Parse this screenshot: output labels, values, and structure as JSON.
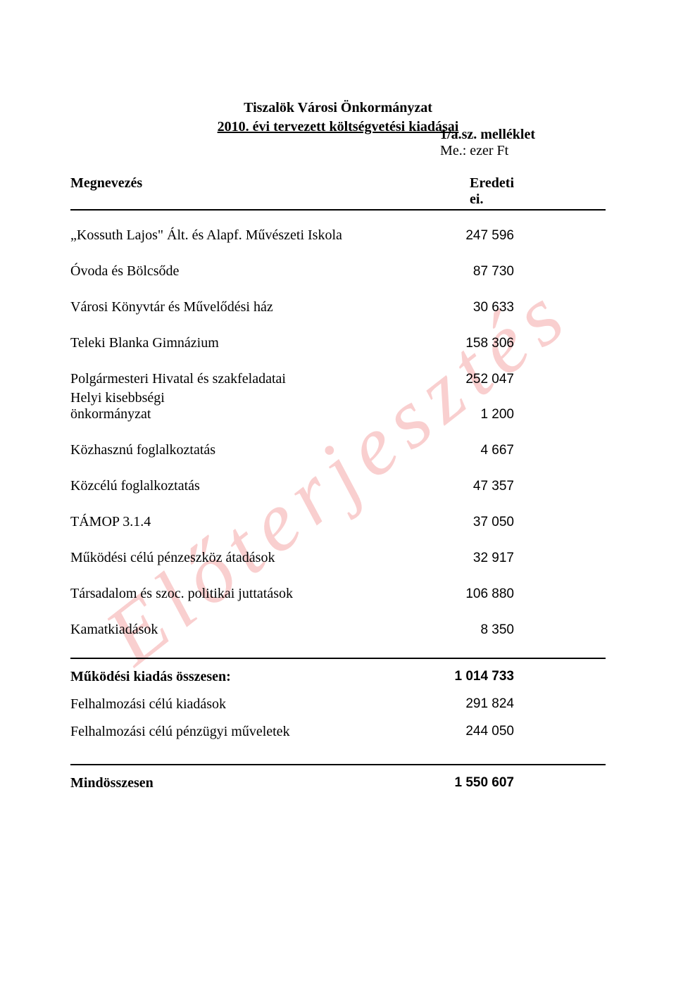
{
  "header": {
    "appendix": "1/a.sz. melléklet",
    "unit": "Me.: ezer Ft"
  },
  "title": {
    "line1": "Tiszalök Városi Önkormányzat",
    "line2": "2010. évi tervezett költségvetési kiadásai"
  },
  "columns": {
    "label": "Megnevezés",
    "value_line1": "Eredeti",
    "value_line2": "ei."
  },
  "rows": [
    {
      "label": "„Kossuth Lajos\" Ált. és Alapf. Művészeti Iskola",
      "value": "247 596"
    },
    {
      "label": "Óvoda és Bölcsőde",
      "value": "87 730"
    },
    {
      "label": "Városi Könyvtár és Művelődési ház",
      "value": "30 633"
    },
    {
      "label": "Teleki Blanka Gimnázium",
      "value": "158 306"
    },
    {
      "label": "Polgármesteri Hivatal és szakfeladatai",
      "value": "252 047"
    },
    {
      "label": "Helyi kisebbségi",
      "value": ""
    },
    {
      "label": "önkormányzat",
      "value": "1 200"
    },
    {
      "label": "Közhasznú foglalkoztatás",
      "value": "4 667"
    },
    {
      "label": "Közcélú foglalkoztatás",
      "value": "47 357"
    },
    {
      "label": "TÁMOP 3.1.4",
      "value": "37 050"
    },
    {
      "label": "Működési célú pénzeszköz átadások",
      "value": "32 917"
    },
    {
      "label": "Társadalom és szoc. politikai juttatások",
      "value": "106 880"
    },
    {
      "label": "Kamatkiadások",
      "value": "8 350"
    }
  ],
  "totals": [
    {
      "label": "Működési kiadás összesen:",
      "value": "1 014 733",
      "bold": true
    },
    {
      "label": "Felhalmozási célú kiadások",
      "value": "291 824",
      "bold": false
    },
    {
      "label": "Felhalmozási célú pénzügyi műveletek",
      "value": "244 050",
      "bold": false
    }
  ],
  "grand_total": {
    "label": "Mindösszesen",
    "value": "1 550 607"
  },
  "watermark": "Előterjesztés",
  "styles": {
    "text_color": "#000000",
    "watermark_color": "#f5a9a9",
    "background_color": "#ffffff",
    "body_font_size_pt": 15,
    "value_font_family": "Arial"
  }
}
